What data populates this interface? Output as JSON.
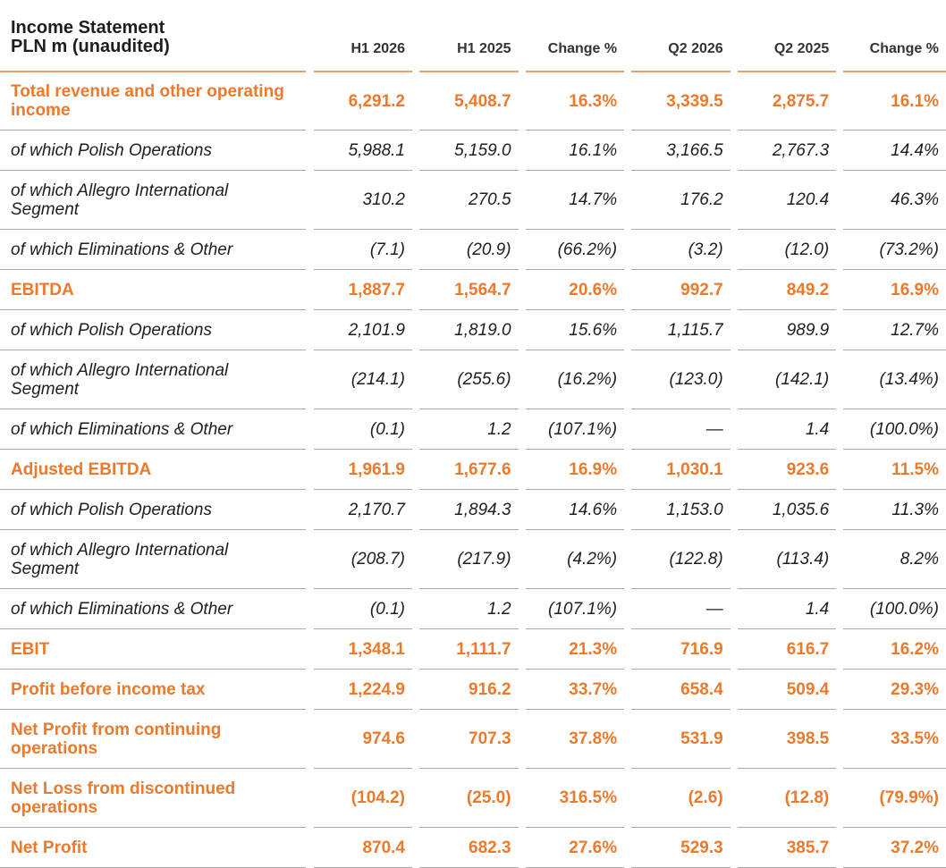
{
  "header": {
    "title_line1": "Income Statement",
    "title_line2": "PLN m (unaudited)",
    "columns": [
      "H1 2026",
      "H1 2025",
      "Change %",
      "Q2 2026",
      "Q2 2025",
      "Change %"
    ]
  },
  "rows": [
    {
      "label": "Total revenue and other operating income",
      "values": [
        "6,291.2",
        "5,408.7",
        "16.3%",
        "3,339.5",
        "2,875.7",
        "16.1%"
      ]
    },
    {
      "label": "of which Polish Operations",
      "values": [
        "5,988.1",
        "5,159.0",
        "16.1%",
        "3,166.5",
        "2,767.3",
        "14.4%"
      ]
    },
    {
      "label": "of which Allegro International Segment",
      "values": [
        "310.2",
        "270.5",
        "14.7%",
        "176.2",
        "120.4",
        "46.3%"
      ]
    },
    {
      "label": "of which Eliminations & Other",
      "values": [
        "(7.1)",
        "(20.9)",
        "(66.2%)",
        "(3.2)",
        "(12.0)",
        "(73.2%)"
      ]
    },
    {
      "label": "EBITDA",
      "values": [
        "1,887.7",
        "1,564.7",
        "20.6%",
        "992.7",
        "849.2",
        "16.9%"
      ]
    },
    {
      "label": "of which Polish Operations",
      "values": [
        "2,101.9",
        "1,819.0",
        "15.6%",
        "1,115.7",
        "989.9",
        "12.7%"
      ]
    },
    {
      "label": "of which Allegro International Segment",
      "values": [
        "(214.1)",
        "(255.6)",
        "(16.2%)",
        "(123.0)",
        "(142.1)",
        "(13.4%)"
      ]
    },
    {
      "label": "of which Eliminations & Other",
      "values": [
        "(0.1)",
        "1.2",
        "(107.1%)",
        "—",
        "1.4",
        "(100.0%)"
      ]
    },
    {
      "label": "Adjusted EBITDA",
      "values": [
        "1,961.9",
        "1,677.6",
        "16.9%",
        "1,030.1",
        "923.6",
        "11.5%"
      ]
    },
    {
      "label": "of which Polish Operations",
      "values": [
        "2,170.7",
        "1,894.3",
        "14.6%",
        "1,153.0",
        "1,035.6",
        "11.3%"
      ]
    },
    {
      "label": "of which Allegro International Segment",
      "values": [
        "(208.7)",
        "(217.9)",
        "(4.2%)",
        "(122.8)",
        "(113.4)",
        "8.2%"
      ]
    },
    {
      "label": "of which Eliminations & Other",
      "values": [
        "(0.1)",
        "1.2",
        "(107.1%)",
        "—",
        "1.4",
        "(100.0%)"
      ]
    },
    {
      "label": "EBIT",
      "values": [
        "1,348.1",
        "1,111.7",
        "21.3%",
        "716.9",
        "616.7",
        "16.2%"
      ]
    },
    {
      "label": "Profit before income tax",
      "values": [
        "1,224.9",
        "916.2",
        "33.7%",
        "658.4",
        "509.4",
        "29.3%"
      ]
    },
    {
      "label": "Net Profit from continuing operations",
      "values": [
        "974.6",
        "707.3",
        "37.8%",
        "531.9",
        "398.5",
        "33.5%"
      ]
    },
    {
      "label": "Net Loss from discontinued operations",
      "values": [
        "(104.2)",
        "(25.0)",
        "316.5%",
        "(2.6)",
        "(12.8)",
        "(79.9%)"
      ]
    },
    {
      "label": "Net Profit",
      "values": [
        "870.4",
        "682.3",
        "27.6%",
        "529.3",
        "385.7",
        "37.2%"
      ]
    }
  ],
  "colors": {
    "highlight_text": "#ec7a2c",
    "body_text": "#1e1e1e",
    "header_rule": "#e8a06a",
    "row_rule": "#a9a9a9"
  }
}
